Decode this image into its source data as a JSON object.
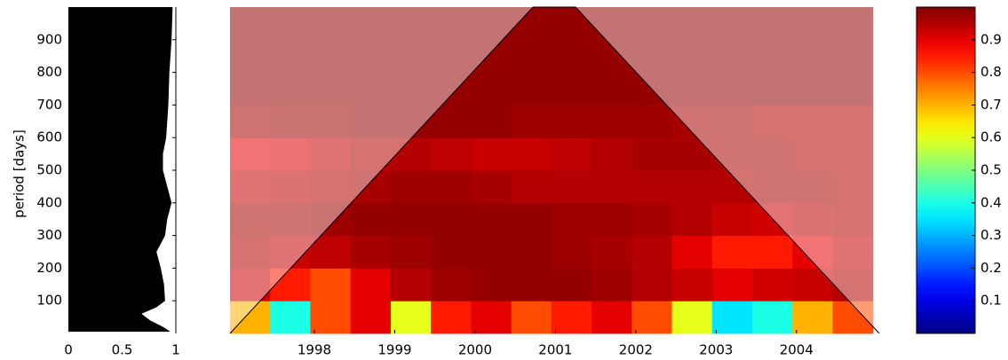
{
  "chart_data": [
    {
      "type": "area",
      "ylabel": "period [days]",
      "periods": [
        5,
        20,
        40,
        60,
        80,
        100,
        150,
        200,
        250,
        300,
        350,
        400,
        450,
        500,
        550,
        600,
        700,
        800,
        900,
        1000
      ],
      "values": [
        0.95,
        0.88,
        0.76,
        0.68,
        0.82,
        0.9,
        0.89,
        0.86,
        0.82,
        0.9,
        0.92,
        0.96,
        0.92,
        0.88,
        0.88,
        0.91,
        0.93,
        0.94,
        0.96,
        0.97
      ],
      "color": "#000000",
      "xlim": [
        0,
        1
      ],
      "xticks": [
        0,
        0.5,
        1
      ],
      "ylim": [
        0,
        1000
      ],
      "yticks": [
        100,
        200,
        300,
        400,
        500,
        600,
        700,
        800,
        900
      ]
    },
    {
      "type": "heatmap",
      "colormap": "jet",
      "x": [
        1997.2,
        1997.7,
        1998.2,
        1998.7,
        1999.2,
        1999.7,
        2000.2,
        2000.7,
        2001.2,
        2001.7,
        2002.2,
        2002.7,
        2003.2,
        2003.7,
        2004.2,
        2004.7
      ],
      "y": [
        50,
        150,
        250,
        350,
        450,
        550,
        650,
        750,
        850,
        950
      ],
      "z": [
        [
          0.7,
          0.4,
          0.8,
          0.9,
          0.6,
          0.85,
          0.9,
          0.8,
          0.85,
          0.9,
          0.8,
          0.6,
          0.35,
          0.4,
          0.7,
          0.8
        ],
        [
          0.92,
          0.85,
          0.8,
          0.9,
          0.95,
          0.97,
          0.98,
          0.98,
          0.98,
          0.97,
          0.95,
          0.93,
          0.9,
          0.92,
          0.93,
          0.95
        ],
        [
          0.95,
          0.93,
          0.94,
          0.96,
          0.97,
          0.98,
          0.98,
          0.98,
          0.97,
          0.96,
          0.95,
          0.9,
          0.85,
          0.85,
          0.9,
          0.93
        ],
        [
          0.96,
          0.96,
          0.97,
          0.98,
          0.98,
          0.98,
          0.98,
          0.98,
          0.97,
          0.97,
          0.96,
          0.95,
          0.93,
          0.92,
          0.94,
          0.95
        ],
        [
          0.93,
          0.94,
          0.95,
          0.96,
          0.97,
          0.97,
          0.96,
          0.95,
          0.95,
          0.95,
          0.95,
          0.95,
          0.95,
          0.96,
          0.96,
          0.95
        ],
        [
          0.9,
          0.91,
          0.93,
          0.95,
          0.95,
          0.94,
          0.93,
          0.93,
          0.94,
          0.95,
          0.96,
          0.96,
          0.96,
          0.96,
          0.95,
          0.95
        ],
        [
          0.96,
          0.97,
          0.97,
          0.98,
          0.98,
          0.98,
          0.98,
          0.97,
          0.97,
          0.97,
          0.97,
          0.96,
          0.96,
          0.95,
          0.95,
          0.95
        ],
        [
          0.98,
          0.98,
          0.98,
          0.98,
          0.98,
          0.98,
          0.98,
          0.98,
          0.98,
          0.98,
          0.98,
          0.98,
          0.98,
          0.98,
          0.98,
          0.98
        ],
        [
          0.98,
          0.98,
          0.98,
          0.98,
          0.98,
          0.98,
          0.98,
          0.98,
          0.98,
          0.98,
          0.98,
          0.98,
          0.98,
          0.98,
          0.98,
          0.98
        ],
        [
          0.98,
          0.98,
          0.98,
          0.98,
          0.98,
          0.98,
          0.98,
          0.98,
          0.98,
          0.98,
          0.98,
          0.98,
          0.98,
          0.98,
          0.98,
          0.98
        ]
      ],
      "coi": {
        "x": [
          1996.95,
          2000.72,
          2001.25,
          2005.03
        ],
        "y": [
          0,
          1000,
          1000,
          0
        ]
      },
      "xlim": [
        1996.95,
        2005.03
      ],
      "xticks": [
        1998,
        1999,
        2000,
        2001,
        2002,
        2003,
        2004
      ],
      "ylim": [
        0,
        1000
      ],
      "clim": [
        0,
        1
      ],
      "cticks": [
        0.1,
        0.2,
        0.3,
        0.4,
        0.5,
        0.6,
        0.7,
        0.8,
        0.9
      ]
    }
  ]
}
